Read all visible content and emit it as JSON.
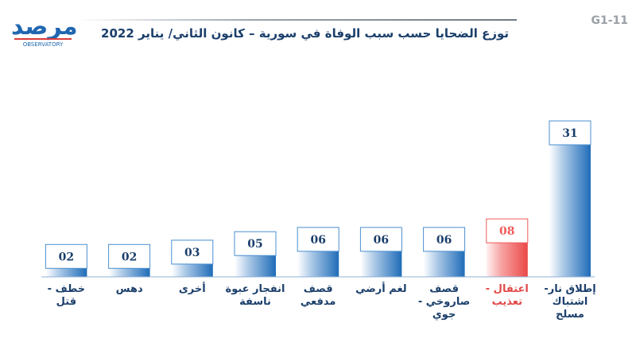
{
  "logo": {
    "text": "مرصد",
    "sub": "OBSERVATORY"
  },
  "code": "G1-11",
  "title": "توزع الضحايا حسب سبب الوفاة في سورية – كانون الثاني/ يناير 2022",
  "colors": {
    "normal": "#2f73b8",
    "highlight": "#f05a5a",
    "label": "#1b3f6b",
    "highlight_label": "#e24848"
  },
  "chart_data": {
    "type": "bar",
    "title": "توزع الضحايا حسب سبب الوفاة في سورية – كانون الثاني/ يناير 2022",
    "xlabel": "",
    "ylabel": "",
    "categories": [
      "إطلاق نار- اشتباك مسلح",
      "اعتقال - تعذيب",
      "قصف صاروخي - جوي",
      "لغم أرضي",
      "قصف مدفعي",
      "انفجار عبوة ناسفة",
      "أخرى",
      "دهس",
      "خطف - قتل"
    ],
    "values": [
      31,
      8,
      6,
      6,
      6,
      5,
      3,
      2,
      2
    ],
    "value_labels": [
      "31",
      "08",
      "06",
      "06",
      "06",
      "05",
      "03",
      "02",
      "02"
    ],
    "highlight_index": 1,
    "ylim": [
      0,
      31
    ],
    "grid": false,
    "legend": "none",
    "direction": "right-to-left"
  }
}
